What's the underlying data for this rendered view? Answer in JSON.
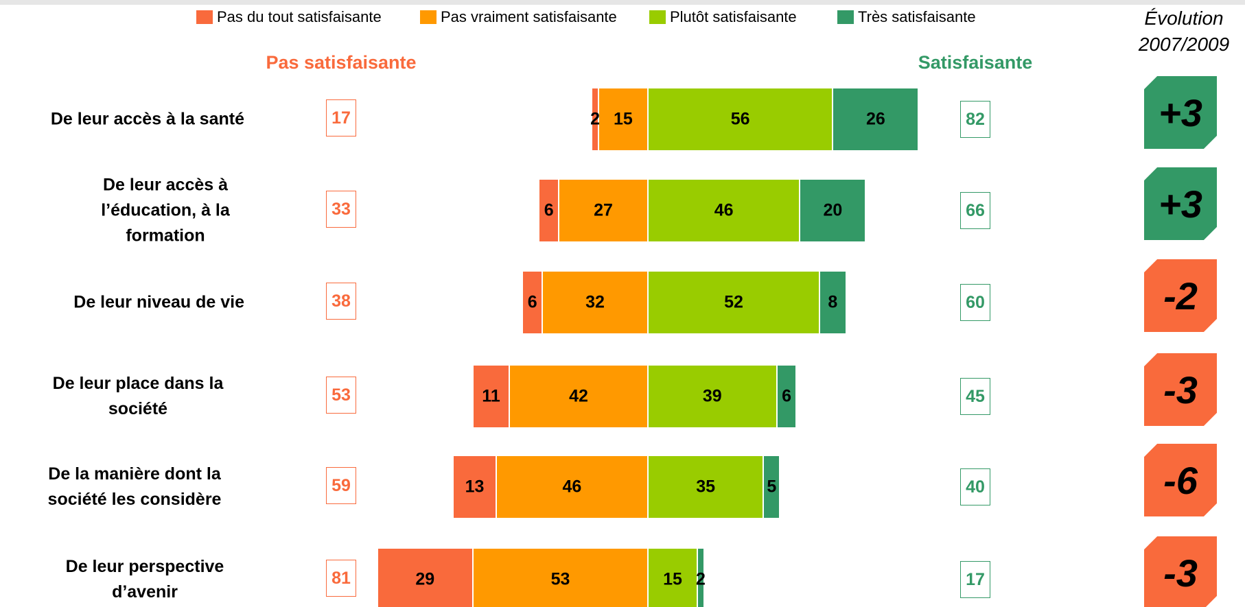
{
  "chart_data": {
    "type": "diverging_bar",
    "categories": [
      "De leur accès à la santé",
      "De leur accès à l’éducation, à la formation",
      "De leur niveau de vie",
      "De leur place dans la société",
      "De la manière dont la société les considère",
      "De leur perspective d’avenir"
    ],
    "series": [
      {
        "name": "Pas du tout satisfaisante",
        "color": "#f96a3c",
        "side": "negative",
        "values": [
          2,
          6,
          6,
          11,
          13,
          29
        ]
      },
      {
        "name": "Pas vraiment satisfaisante",
        "color": "#ff9900",
        "side": "negative",
        "values": [
          15,
          27,
          32,
          42,
          46,
          53
        ]
      },
      {
        "name": "Plutôt satisfaisante",
        "color": "#99cc00",
        "side": "positive",
        "values": [
          56,
          46,
          52,
          39,
          35,
          15
        ]
      },
      {
        "name": "Très satisfaisante",
        "color": "#339966",
        "side": "positive",
        "values": [
          26,
          20,
          8,
          6,
          5,
          2
        ]
      }
    ],
    "totals": [
      {
        "name": "Pas satisfaisante",
        "color": "#f96a3c",
        "values": [
          17,
          33,
          38,
          53,
          59,
          81
        ]
      },
      {
        "name": "Satisfaisante",
        "color": "#339966",
        "values": [
          82,
          66,
          60,
          45,
          40,
          17
        ]
      }
    ],
    "evolution": {
      "title": "Évolution 2007/2009",
      "values": [
        3,
        3,
        -2,
        -3,
        -6,
        -3
      ],
      "value_labels": [
        "+3",
        "+3",
        "-2",
        "-3",
        "-6",
        "-3"
      ],
      "positive_color": "#339966",
      "negative_color": "#f96a3c"
    }
  }
}
